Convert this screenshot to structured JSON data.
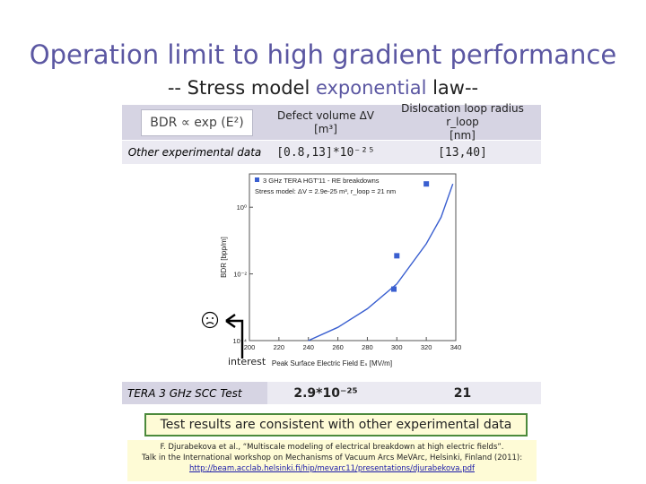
{
  "title": "Operation limit to high gradient performance",
  "subtitle": {
    "prefix": "-- Stress model ",
    "accent": "exponential",
    "suffix": " law--"
  },
  "table": {
    "formula": "BDR ∝ exp (E²)",
    "col1_header_line1": "Defect volume ΔV",
    "col1_header_line2": "[m³]",
    "col2_header_line1": "Dislocation loop radius r_loop",
    "col2_header_line2": "[nm]",
    "row1_label": "Other experimental data",
    "row1_col1": "[0.8,13]*10⁻²⁵",
    "row1_col2": "[13,40]",
    "row2_label": "TERA 3 GHz SCC Test",
    "row2_col1": "2.9*10⁻²⁵",
    "row2_col2": "21"
  },
  "chart_data": {
    "type": "scatter",
    "title": "3 GHz TERA HGT'11 - RE breakdowns",
    "legend": [
      "3 GHz TERA HGT'11 - RE breakdowns",
      "Stress model: ΔV = 2.9e-25 m³, r_loop = 21 nm"
    ],
    "xlabel": "Peak Surface Electric Field Eₛ [MV/m]",
    "ylabel": "BDR [bpp/m]",
    "x_ticks": [
      "200",
      "220",
      "240",
      "260",
      "280",
      "300",
      "320",
      "340"
    ],
    "y_ticks": [
      "10⁰",
      "10⁻²",
      "10⁻⁴"
    ],
    "xlim": [
      200,
      340
    ],
    "ylog": true,
    "ylim": [
      0.0001,
      10
    ],
    "points": [
      {
        "x": 298,
        "y": 0.0035
      },
      {
        "x": 300,
        "y": 0.035
      },
      {
        "x": 320,
        "y": 5
      }
    ],
    "curve": [
      {
        "x": 240,
        "y": 0.0001
      },
      {
        "x": 260,
        "y": 0.00025
      },
      {
        "x": 280,
        "y": 0.0009
      },
      {
        "x": 300,
        "y": 0.005
      },
      {
        "x": 320,
        "y": 0.08
      },
      {
        "x": 330,
        "y": 0.5
      },
      {
        "x": 338,
        "y": 5
      }
    ],
    "marker_color": "#3a5fd0",
    "curve_color": "#3a5fd0"
  },
  "annotation": "interest",
  "conclusion": "Test results are consistent with other experimental data",
  "reference": {
    "line1": "F. Djurabekova et al., “Multiscale modeling of electrical breakdown at high electric fields”.",
    "line2": "Talk in the International workshop on Mechanisms of Vacuum Arcs MeVArc, Helsinki, Finland (2011):",
    "link": "http://beam.acclab.helsinki.fi/hip/mevarc11/presentations/djurabekova.pdf"
  }
}
